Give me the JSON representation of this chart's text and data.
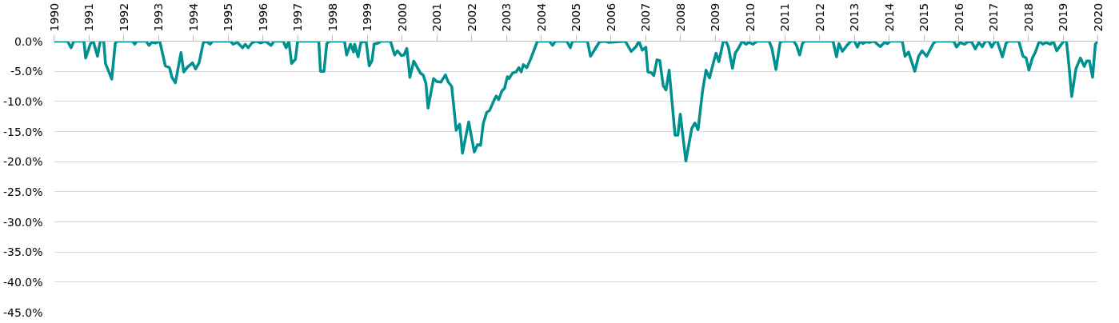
{
  "chart_data": {
    "type": "line",
    "x": [
      1990.0,
      1990.39,
      1990.49,
      1990.57,
      1990.86,
      1990.91,
      1991.05,
      1991.13,
      1991.25,
      1991.33,
      1991.43,
      1991.48,
      1991.66,
      1991.76,
      1991.81,
      1992.26,
      1992.32,
      1992.38,
      1992.65,
      1992.73,
      1992.81,
      1992.93,
      1993.04,
      1993.2,
      1993.32,
      1993.39,
      1993.49,
      1993.65,
      1993.73,
      1993.82,
      1993.98,
      1994.07,
      1994.17,
      1994.29,
      1994.37,
      1994.49,
      1994.56,
      1995.07,
      1995.15,
      1995.27,
      1995.42,
      1995.5,
      1995.58,
      1995.69,
      1995.81,
      1995.93,
      1996.08,
      1996.24,
      1996.32,
      1996.59,
      1996.67,
      1996.75,
      1996.83,
      1996.94,
      1997.0,
      1997.61,
      1997.66,
      1997.76,
      1997.84,
      1997.92,
      1998.35,
      1998.41,
      1998.52,
      1998.61,
      1998.64,
      1998.74,
      1998.82,
      1998.97,
      1999.06,
      1999.14,
      1999.2,
      1999.32,
      1999.4,
      1999.67,
      1999.79,
      1999.87,
      1999.99,
      2000.06,
      2000.14,
      2000.23,
      2000.34,
      2000.53,
      2000.61,
      2000.69,
      2000.75,
      2000.91,
      2001.0,
      2001.12,
      2001.25,
      2001.33,
      2001.43,
      2001.56,
      2001.66,
      2001.74,
      2001.92,
      2002.08,
      2002.17,
      2002.26,
      2002.34,
      2002.44,
      2002.52,
      2002.64,
      2002.71,
      2002.78,
      2002.87,
      2002.95,
      2003.03,
      2003.08,
      2003.18,
      2003.28,
      2003.36,
      2003.43,
      2003.49,
      2003.59,
      2003.69,
      2003.88,
      2003.92,
      2004.24,
      2004.33,
      2004.41,
      2004.74,
      2004.84,
      2004.9,
      2005.33,
      2005.42,
      2005.68,
      2005.84,
      2005.95,
      2006.42,
      2006.59,
      2006.73,
      2006.81,
      2006.91,
      2007.01,
      2007.07,
      2007.16,
      2007.24,
      2007.33,
      2007.41,
      2007.51,
      2007.59,
      2007.68,
      2007.85,
      2007.93,
      2008.0,
      2008.16,
      2008.33,
      2008.42,
      2008.51,
      2008.64,
      2008.74,
      2008.84,
      2008.96,
      2009.03,
      2009.11,
      2009.23,
      2009.31,
      2009.38,
      2009.5,
      2009.58,
      2009.67,
      2009.78,
      2009.89,
      2009.97,
      2010.09,
      2010.2,
      2010.55,
      2010.63,
      2010.75,
      2010.87,
      2010.95,
      2011.26,
      2011.34,
      2011.43,
      2011.51,
      2011.57,
      2012.39,
      2012.49,
      2012.56,
      2012.66,
      2012.79,
      2012.9,
      2013.01,
      2013.09,
      2013.17,
      2013.25,
      2013.33,
      2013.44,
      2013.56,
      2013.75,
      2013.87,
      2013.96,
      2014.03,
      2014.38,
      2014.46,
      2014.56,
      2014.65,
      2014.74,
      2014.85,
      2014.95,
      2015.08,
      2015.27,
      2015.35,
      2015.86,
      2015.94,
      2016.04,
      2016.17,
      2016.29,
      2016.38,
      2016.48,
      2016.58,
      2016.68,
      2016.77,
      2016.87,
      2016.95,
      2017.05,
      2017.11,
      2017.26,
      2017.36,
      2017.42,
      2017.73,
      2017.85,
      2017.94,
      2018.02,
      2018.12,
      2018.2,
      2018.32,
      2018.42,
      2018.51,
      2018.64,
      2018.72,
      2018.82,
      2018.93,
      2019.02,
      2019.1,
      2019.18,
      2019.25,
      2019.37,
      2019.5,
      2019.61,
      2019.68,
      2019.76,
      2019.85,
      2019.93,
      2020.0
    ],
    "values": [
      0,
      0,
      -1.1,
      0,
      0,
      -2.8,
      -0.4,
      0,
      -2.5,
      0,
      0,
      -3.7,
      -6.3,
      -0.4,
      0,
      0,
      -0.5,
      0,
      0,
      -0.7,
      -0.2,
      -0.3,
      0,
      -4.1,
      -4.4,
      -6.0,
      -6.9,
      -1.9,
      -5.1,
      -4.4,
      -3.6,
      -4.6,
      -3.6,
      -0.3,
      0,
      -0.5,
      0,
      0,
      -0.5,
      -0.2,
      -1.1,
      -0.5,
      -1.1,
      -0.3,
      0,
      -0.3,
      0,
      -0.7,
      0,
      0,
      -1.1,
      0,
      -3.7,
      -3.0,
      0,
      0,
      -5.0,
      -5.0,
      -0.4,
      0,
      0,
      -2.3,
      -0.5,
      -1.8,
      -0.5,
      -2.6,
      -0.2,
      0,
      -4.1,
      -3.2,
      -0.5,
      -0.3,
      0,
      0,
      -2.3,
      -1.6,
      -2.4,
      -2.3,
      -1.2,
      -6.0,
      -3.3,
      -5.3,
      -5.6,
      -7.0,
      -11.1,
      -6.2,
      -6.7,
      -6.8,
      -5.6,
      -6.8,
      -7.5,
      -14.8,
      -13.8,
      -18.6,
      -13.4,
      -18.4,
      -17.2,
      -17.3,
      -13.6,
      -11.8,
      -11.5,
      -9.9,
      -9.1,
      -9.7,
      -8.3,
      -7.8,
      -5.9,
      -6.2,
      -5.3,
      -5.1,
      -4.4,
      -5.1,
      -3.9,
      -4.4,
      -3.1,
      -0.2,
      0,
      0,
      -0.7,
      0,
      0,
      -1.1,
      0,
      0,
      -2.5,
      -0.1,
      0,
      -0.2,
      0,
      -1.7,
      -0.9,
      0,
      -1.5,
      -1.0,
      -5.1,
      -5.2,
      -5.7,
      -3.1,
      -3.2,
      -7.4,
      -8.1,
      -4.8,
      -15.6,
      -15.6,
      -12.1,
      -19.9,
      -14.5,
      -13.6,
      -14.7,
      -8.3,
      -4.8,
      -6.1,
      -3.4,
      -2.0,
      -3.4,
      -0.2,
      0,
      -0.9,
      -4.5,
      -2.0,
      -1.2,
      0,
      -0.5,
      -0.2,
      -0.5,
      0,
      0,
      -1.1,
      -4.7,
      -0.2,
      0,
      0,
      -0.7,
      -2.3,
      -0.4,
      0,
      0,
      -2.6,
      -0.4,
      -1.7,
      -0.7,
      0,
      0,
      -1.0,
      0,
      -0.4,
      -0.1,
      -0.2,
      0,
      -0.9,
      -0.2,
      -0.4,
      0,
      0,
      -2.5,
      -1.8,
      -3.4,
      -5.0,
      -2.5,
      -1.6,
      -2.5,
      -0.4,
      0,
      0,
      -1.0,
      -0.2,
      -0.5,
      0,
      -0.2,
      -1.3,
      -0.2,
      -0.9,
      0,
      0,
      -1.0,
      0,
      0,
      -2.6,
      -0.4,
      0,
      0,
      -2.5,
      -2.8,
      -4.8,
      -2.8,
      -1.9,
      0,
      -0.5,
      -0.2,
      -0.5,
      0,
      -1.6,
      -0.7,
      0,
      0,
      -4.6,
      -9.2,
      -4.6,
      -2.8,
      -4.2,
      -3.3,
      -3.3,
      -6.0,
      -0.5,
      0
    ],
    "color": "#00908f",
    "xlim": [
      1990,
      2020
    ],
    "xticks": [
      1990,
      1991,
      1992,
      1993,
      1994,
      1995,
      1996,
      1997,
      1998,
      1999,
      2000,
      2001,
      2002,
      2003,
      2004,
      2005,
      2006,
      2007,
      2008,
      2009,
      2010,
      2011,
      2012,
      2013,
      2014,
      2015,
      2016,
      2017,
      2018,
      2019,
      2020
    ],
    "ylim": [
      -45,
      0
    ],
    "yticks": [
      {
        "value": 0,
        "label": "0.0%"
      },
      {
        "value": -5,
        "label": "-5.0%"
      },
      {
        "value": -10,
        "label": "-10.0%"
      },
      {
        "value": -15,
        "label": "-15.0%"
      },
      {
        "value": -20,
        "label": "-20.0%"
      },
      {
        "value": -25,
        "label": "-25.0%"
      },
      {
        "value": -30,
        "label": "-30.0%"
      },
      {
        "value": -35,
        "label": "-35.0%"
      },
      {
        "value": -40,
        "label": "-40.0%"
      },
      {
        "value": -45,
        "label": "-45.0%"
      }
    ],
    "grid": "y",
    "marker": "none",
    "line_style": "solid"
  }
}
